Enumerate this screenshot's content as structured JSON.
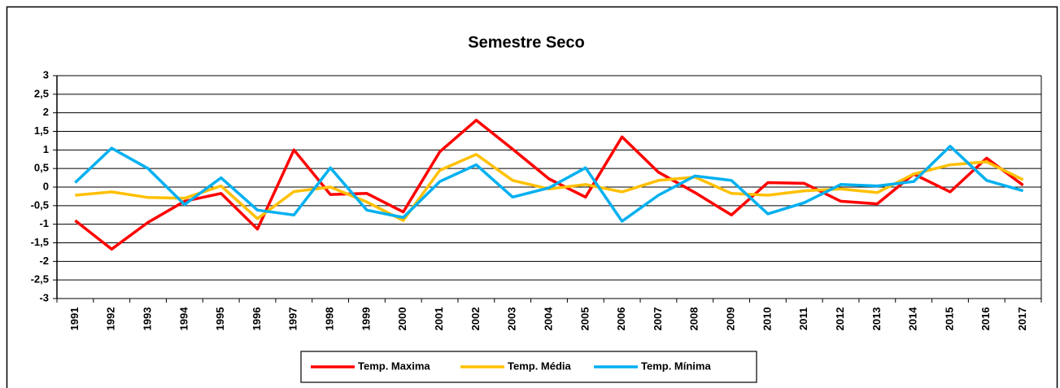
{
  "chart_data": {
    "type": "line",
    "title": "Semestre Seco",
    "categories": [
      "1991",
      "1992",
      "1993",
      "1994",
      "1995",
      "1996",
      "1997",
      "1998",
      "1999",
      "2000",
      "2001",
      "2002",
      "2003",
      "2004",
      "2005",
      "2006",
      "2007",
      "2008",
      "2009",
      "2010",
      "2011",
      "2012",
      "2013",
      "2014",
      "2015",
      "2016",
      "2017"
    ],
    "series": [
      {
        "name": "Temp. Maxima",
        "color": "#ff0000",
        "values": [
          -0.9,
          -1.67,
          -0.95,
          -0.38,
          -0.17,
          -1.13,
          1.0,
          -0.2,
          -0.17,
          -0.67,
          0.95,
          1.8,
          1.02,
          0.22,
          -0.27,
          1.35,
          0.4,
          -0.15,
          -0.75,
          0.12,
          0.1,
          -0.38,
          -0.45,
          0.35,
          -0.13,
          0.78,
          0.05
        ]
      },
      {
        "name": "Temp. Média",
        "color": "#ffc000",
        "values": [
          -0.22,
          -0.13,
          -0.28,
          -0.3,
          0.03,
          -0.85,
          -0.12,
          0.0,
          -0.4,
          -0.9,
          0.45,
          0.88,
          0.18,
          -0.05,
          0.07,
          -0.13,
          0.18,
          0.27,
          -0.17,
          -0.22,
          -0.1,
          -0.05,
          -0.15,
          0.35,
          0.6,
          0.68,
          0.2
        ]
      },
      {
        "name": "Temp. Mínima",
        "color": "#00b0f0",
        "values": [
          0.12,
          1.05,
          0.5,
          -0.47,
          0.25,
          -0.62,
          -0.75,
          0.52,
          -0.62,
          -0.82,
          0.15,
          0.6,
          -0.27,
          -0.02,
          0.52,
          -0.92,
          -0.22,
          0.3,
          0.18,
          -0.72,
          -0.42,
          0.07,
          0.03,
          0.15,
          1.1,
          0.18,
          -0.1
        ]
      }
    ],
    "ylim": [
      -3,
      3
    ],
    "yticks": [
      3,
      {
        "value": 2.5,
        "label": "2,5"
      },
      2,
      {
        "value": 1.5,
        "label": "1,5"
      },
      1,
      {
        "value": 0.5,
        "label": "0,5"
      },
      0,
      {
        "value": -0.5,
        "label": "-0,5"
      },
      -1,
      {
        "value": -1.5,
        "label": "-1,5"
      },
      -2,
      {
        "value": -2.5,
        "label": "-2,5"
      },
      -3
    ],
    "grid": true,
    "legend": "bottom"
  }
}
